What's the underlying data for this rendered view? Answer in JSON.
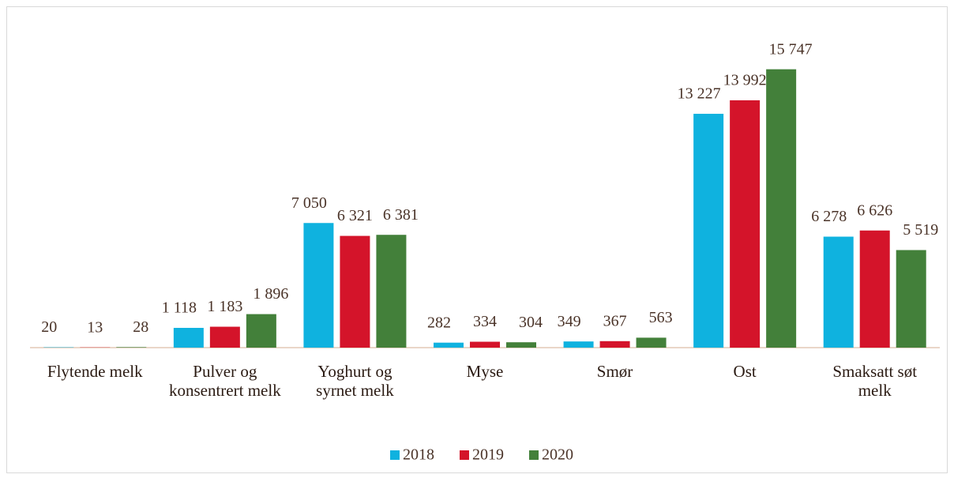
{
  "chart_data": {
    "type": "bar",
    "categories": [
      "Flytende melk",
      "Pulver og konsentrert melk",
      "Yoghurt og syrnet melk",
      "Myse",
      "Smør",
      "Ost",
      "Smaksatt søt melk"
    ],
    "series": [
      {
        "name": "2018",
        "color": "#0fb2df",
        "values": [
          20,
          1118,
          7050,
          282,
          349,
          13227,
          6278
        ],
        "value_labels": [
          "20",
          "1 118",
          "7 050",
          "282",
          "349",
          "13 227",
          "6 278"
        ]
      },
      {
        "name": "2019",
        "color": "#d4142a",
        "values": [
          13,
          1183,
          6321,
          334,
          367,
          13992,
          6626
        ],
        "value_labels": [
          "13",
          "1 183",
          "6 321",
          "334",
          "367",
          "13 992",
          "6 626"
        ]
      },
      {
        "name": "2020",
        "color": "#43803a",
        "values": [
          28,
          1896,
          6381,
          304,
          563,
          15747,
          5519
        ],
        "value_labels": [
          "28",
          "1 896",
          "6 381",
          "304",
          "563",
          "15 747",
          "5 519"
        ]
      }
    ],
    "ylim": [
      0,
      16000
    ],
    "legend": "bottom"
  }
}
